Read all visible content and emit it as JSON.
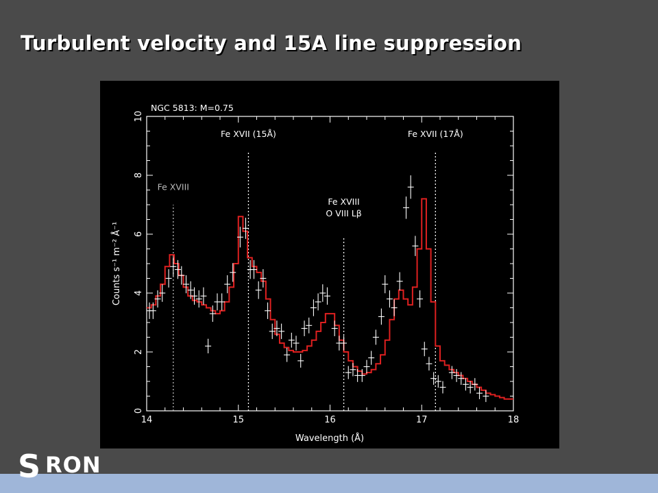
{
  "slide": {
    "title": "Turbulent velocity and 15A line suppression"
  },
  "logo": {
    "initial": "S",
    "rest": "RON"
  },
  "colors": {
    "background": "#4a4a4a",
    "plot_background": "#000000",
    "model_line": "#e02020",
    "data_points": "#ffffff",
    "bottom_bar": "#9fb6d9"
  },
  "chart_data": {
    "type": "line",
    "title": "NGC 5813: M=0.75",
    "xlabel": "Wavelength (Å)",
    "ylabel": "Counts s⁻¹ m⁻² Å⁻¹",
    "xlim": [
      14,
      18
    ],
    "ylim": [
      0,
      10
    ],
    "xticks": [
      14,
      15,
      16,
      17,
      18
    ],
    "yticks": [
      0,
      2,
      4,
      6,
      8,
      10
    ],
    "grid": false,
    "annotations": [
      {
        "x": 14.29,
        "lines": [
          "Fe XVIII"
        ],
        "label_y": 7.5,
        "line_top": 7.0,
        "color": "#bbbbbb"
      },
      {
        "x": 15.11,
        "lines": [
          "Fe XVII (15Å)"
        ],
        "label_y": 9.3,
        "line_top": 8.8,
        "color": "#ffffff"
      },
      {
        "x": 16.15,
        "lines": [
          "Fe XVIII",
          "O VIII Lβ"
        ],
        "label_y": 7.0,
        "line_top": 5.9,
        "color": "#ffffff"
      },
      {
        "x": 17.15,
        "lines": [
          "Fe XVII (17Å)"
        ],
        "label_y": 9.3,
        "line_top": 8.8,
        "color": "#ffffff"
      }
    ],
    "series": [
      {
        "kind": "model-step",
        "x": [
          14.0,
          14.05,
          14.1,
          14.15,
          14.2,
          14.25,
          14.3,
          14.35,
          14.4,
          14.45,
          14.5,
          14.55,
          14.6,
          14.65,
          14.7,
          14.75,
          14.8,
          14.85,
          14.9,
          14.95,
          15.0,
          15.05,
          15.1,
          15.15,
          15.2,
          15.25,
          15.3,
          15.35,
          15.4,
          15.45,
          15.5,
          15.55,
          15.6,
          15.65,
          15.7,
          15.75,
          15.8,
          15.85,
          15.9,
          15.95,
          16.0,
          16.05,
          16.1,
          16.15,
          16.2,
          16.25,
          16.3,
          16.35,
          16.4,
          16.45,
          16.5,
          16.55,
          16.6,
          16.65,
          16.7,
          16.75,
          16.8,
          16.85,
          16.9,
          16.95,
          17.0,
          17.05,
          17.1,
          17.15,
          17.2,
          17.25,
          17.3,
          17.35,
          17.4,
          17.45,
          17.5,
          17.55,
          17.6,
          17.65,
          17.7,
          17.75,
          17.8,
          17.85,
          17.9,
          17.95
        ],
        "values": [
          3.5,
          3.6,
          3.9,
          4.3,
          4.9,
          5.3,
          5.0,
          4.6,
          4.2,
          3.9,
          3.75,
          3.7,
          3.6,
          3.5,
          3.4,
          3.3,
          3.4,
          3.7,
          4.2,
          5.0,
          6.6,
          6.1,
          5.2,
          4.9,
          4.7,
          4.4,
          3.8,
          3.1,
          2.6,
          2.3,
          2.15,
          2.05,
          2.0,
          2.0,
          2.05,
          2.2,
          2.4,
          2.7,
          3.0,
          3.3,
          3.3,
          2.9,
          2.4,
          2.0,
          1.7,
          1.5,
          1.35,
          1.25,
          1.3,
          1.4,
          1.6,
          1.9,
          2.4,
          3.1,
          3.8,
          4.1,
          3.8,
          3.6,
          4.2,
          5.5,
          7.2,
          5.5,
          3.7,
          2.2,
          1.7,
          1.55,
          1.4,
          1.3,
          1.2,
          1.1,
          1.0,
          0.9,
          0.8,
          0.7,
          0.6,
          0.55,
          0.5,
          0.45,
          0.4,
          0.4
        ]
      },
      {
        "kind": "data-crosses",
        "points": [
          {
            "x": 14.03,
            "y": 3.4
          },
          {
            "x": 14.07,
            "y": 3.4
          },
          {
            "x": 14.12,
            "y": 3.8
          },
          {
            "x": 14.17,
            "y": 4.0
          },
          {
            "x": 14.24,
            "y": 4.5
          },
          {
            "x": 14.29,
            "y": 4.9
          },
          {
            "x": 14.34,
            "y": 4.8
          },
          {
            "x": 14.38,
            "y": 4.6
          },
          {
            "x": 14.43,
            "y": 4.3
          },
          {
            "x": 14.48,
            "y": 4.1
          },
          {
            "x": 14.52,
            "y": 3.9
          },
          {
            "x": 14.57,
            "y": 3.8
          },
          {
            "x": 14.62,
            "y": 3.9
          },
          {
            "x": 14.67,
            "y": 2.2
          },
          {
            "x": 14.72,
            "y": 3.3
          },
          {
            "x": 14.77,
            "y": 3.7
          },
          {
            "x": 14.82,
            "y": 3.7
          },
          {
            "x": 14.88,
            "y": 4.3
          },
          {
            "x": 14.94,
            "y": 4.7
          },
          {
            "x": 15.02,
            "y": 5.9
          },
          {
            "x": 15.08,
            "y": 6.2
          },
          {
            "x": 15.13,
            "y": 4.8
          },
          {
            "x": 15.17,
            "y": 4.8
          },
          {
            "x": 15.22,
            "y": 4.1
          },
          {
            "x": 15.27,
            "y": 4.5
          },
          {
            "x": 15.32,
            "y": 3.4
          },
          {
            "x": 15.37,
            "y": 2.7
          },
          {
            "x": 15.42,
            "y": 2.8
          },
          {
            "x": 15.47,
            "y": 2.7
          },
          {
            "x": 15.53,
            "y": 1.9
          },
          {
            "x": 15.58,
            "y": 2.4
          },
          {
            "x": 15.63,
            "y": 2.3
          },
          {
            "x": 15.68,
            "y": 1.7
          },
          {
            "x": 15.72,
            "y": 2.8
          },
          {
            "x": 15.77,
            "y": 2.9
          },
          {
            "x": 15.82,
            "y": 3.5
          },
          {
            "x": 15.87,
            "y": 3.7
          },
          {
            "x": 15.92,
            "y": 4.0
          },
          {
            "x": 15.97,
            "y": 3.9
          },
          {
            "x": 16.05,
            "y": 2.8
          },
          {
            "x": 16.1,
            "y": 2.3
          },
          {
            "x": 16.15,
            "y": 2.3
          },
          {
            "x": 16.2,
            "y": 1.3
          },
          {
            "x": 16.25,
            "y": 1.4
          },
          {
            "x": 16.3,
            "y": 1.2
          },
          {
            "x": 16.35,
            "y": 1.2
          },
          {
            "x": 16.4,
            "y": 1.5
          },
          {
            "x": 16.45,
            "y": 1.8
          },
          {
            "x": 16.5,
            "y": 2.5
          },
          {
            "x": 16.56,
            "y": 3.2
          },
          {
            "x": 16.6,
            "y": 4.3
          },
          {
            "x": 16.65,
            "y": 3.8
          },
          {
            "x": 16.7,
            "y": 3.5
          },
          {
            "x": 16.76,
            "y": 4.4
          },
          {
            "x": 16.83,
            "y": 6.9
          },
          {
            "x": 16.88,
            "y": 7.6
          },
          {
            "x": 16.93,
            "y": 5.6
          },
          {
            "x": 16.98,
            "y": 3.8
          },
          {
            "x": 17.03,
            "y": 2.1
          },
          {
            "x": 17.08,
            "y": 1.6
          },
          {
            "x": 17.13,
            "y": 1.1
          },
          {
            "x": 17.18,
            "y": 1.0
          },
          {
            "x": 17.23,
            "y": 0.8
          },
          {
            "x": 17.33,
            "y": 1.3
          },
          {
            "x": 17.38,
            "y": 1.2
          },
          {
            "x": 17.43,
            "y": 1.1
          },
          {
            "x": 17.48,
            "y": 0.9
          },
          {
            "x": 17.53,
            "y": 0.8
          },
          {
            "x": 17.58,
            "y": 0.9
          },
          {
            "x": 17.63,
            "y": 0.6
          },
          {
            "x": 17.7,
            "y": 0.5
          }
        ]
      }
    ]
  }
}
